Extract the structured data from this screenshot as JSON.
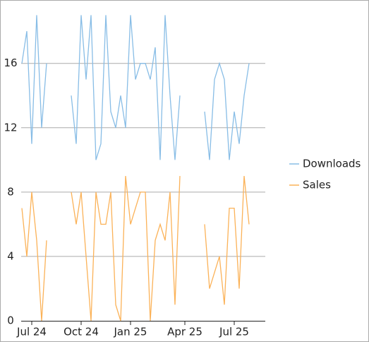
{
  "chart_data": {
    "type": "line",
    "categories": [
      null,
      null,
      "Jul 24",
      null,
      null,
      null,
      null,
      null,
      null,
      null,
      null,
      null,
      "Oct 24",
      null,
      null,
      null,
      null,
      null,
      null,
      null,
      null,
      null,
      "Jan 25",
      null,
      null,
      null,
      null,
      null,
      null,
      null,
      null,
      null,
      null,
      "Apr 25",
      null,
      null,
      null,
      null,
      null,
      null,
      null,
      null,
      null,
      "Jul 25",
      null,
      null,
      null
    ],
    "series": [
      {
        "name": "Downloads",
        "color": "#88bde6",
        "values": [
          16,
          18,
          11,
          19,
          12,
          16,
          null,
          null,
          null,
          null,
          14,
          11,
          19,
          15,
          19,
          10,
          11,
          19,
          13,
          12,
          14,
          12,
          19,
          15,
          16,
          16,
          15,
          17,
          10,
          19,
          14,
          10,
          14,
          null,
          null,
          null,
          null,
          13,
          10,
          15,
          16,
          15,
          10,
          13,
          11,
          14,
          16
        ]
      },
      {
        "name": "Sales",
        "color": "#fbb258",
        "values": [
          7,
          4,
          8,
          5,
          0,
          5,
          null,
          null,
          null,
          null,
          8,
          6,
          8,
          4,
          0,
          8,
          6,
          6,
          8,
          1,
          0,
          9,
          6,
          7,
          8,
          8,
          0,
          5,
          6,
          5,
          8,
          1,
          9,
          null,
          null,
          null,
          null,
          6,
          2,
          3,
          4,
          1,
          7,
          7,
          2,
          9,
          6
        ]
      }
    ],
    "ylim": [
      0,
      19.5
    ],
    "yticks": [
      0,
      4,
      8,
      12,
      16
    ],
    "grid": true,
    "legend": "right"
  }
}
